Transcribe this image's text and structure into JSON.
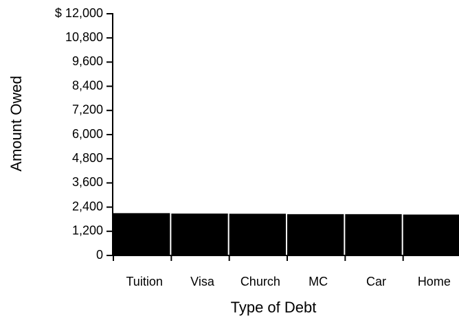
{
  "chart_data": {
    "type": "bar",
    "x_label": "Type of Debt",
    "y_label": "Amount  Owed",
    "categories": [
      "Tuition",
      "Visa",
      "Church",
      "MC",
      "Car",
      "Home"
    ],
    "values": [
      2100,
      2080,
      2070,
      2050,
      2050,
      2030
    ],
    "color": "#000000",
    "ylim": [
      0,
      12000
    ],
    "yticks": [
      0,
      {
        "value": 1200,
        "label": "1,200"
      },
      {
        "value": 2400,
        "label": "2,400"
      },
      {
        "value": 3600,
        "label": "3,600"
      },
      {
        "value": 4800,
        "label": "4,800"
      },
      {
        "value": 6000,
        "label": "6,000"
      },
      {
        "value": 7200,
        "label": "7,200"
      },
      {
        "value": 8400,
        "label": "8,400"
      },
      {
        "value": 9600,
        "label": "9,600"
      },
      {
        "value": 10800,
        "label": "10,800"
      },
      {
        "value": 12000,
        "label": "$ 12,000"
      }
    ],
    "grid": false
  }
}
